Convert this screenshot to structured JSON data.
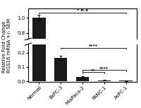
{
  "chart_data": {
    "type": "bar",
    "categories": [
      "Normal",
      "8xPC-3",
      "MiaPaca-2",
      "PANC-1",
      "AsPC-1"
    ],
    "values": [
      1.0,
      0.165,
      0.03,
      0.008,
      0.005
    ],
    "errors": [
      0.04,
      0.015,
      0.008,
      0.003,
      0.002
    ],
    "color": "#1a1a1a",
    "ylabel": "Relative Fold Change\nRGS16 mRNA +/- SEM",
    "ylim": [
      [
        0.72,
        1.12
      ],
      [
        -0.005,
        0.26
      ]
    ],
    "yticks": [
      [
        0.8,
        1.0
      ],
      [
        0.0,
        0.1,
        0.2
      ]
    ],
    "grid": false,
    "annotations": [
      {
        "from": "Normal",
        "to": "AsPC-1",
        "y": 1.07,
        "label": "* n.s"
      },
      {
        "from": "8xPC-3",
        "to": "AsPC-1",
        "y": 0.235,
        "label": "****"
      },
      {
        "from": "MiaPaca-2",
        "to": "PANC-1",
        "y": 0.063,
        "label": "**"
      },
      {
        "from": "MiaPaca-2",
        "to": "AsPC-1",
        "y": 0.078,
        "label": "****"
      }
    ]
  }
}
